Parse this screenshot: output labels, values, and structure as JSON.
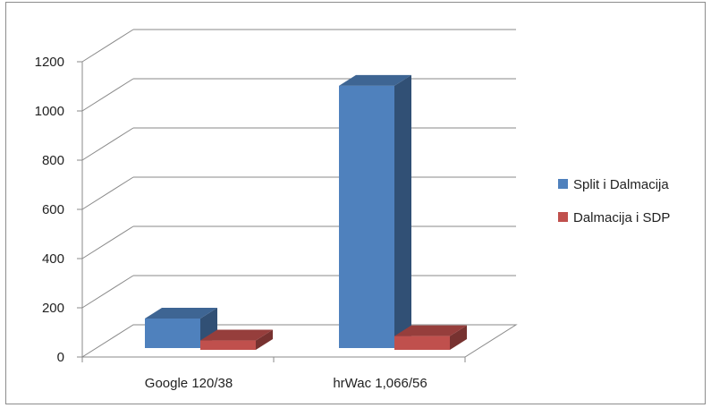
{
  "chart_data": {
    "type": "bar",
    "title": "",
    "xlabel": "",
    "ylabel": "",
    "categories": [
      "Google 120/38",
      "hrWac 1,066/56"
    ],
    "series": [
      {
        "name": "Split i Dalmacija",
        "values": [
          120,
          1066
        ],
        "color": "#4f81bd"
      },
      {
        "name": "Dalmacija i SDP",
        "values": [
          38,
          56
        ],
        "color": "#c0504d"
      }
    ],
    "ylim": [
      0,
      1200
    ],
    "yticks": [
      "0",
      "200",
      "400",
      "600",
      "800",
      "1000",
      "1200"
    ],
    "grid": true,
    "legend_position": "right",
    "style": "3d-clustered-column"
  }
}
